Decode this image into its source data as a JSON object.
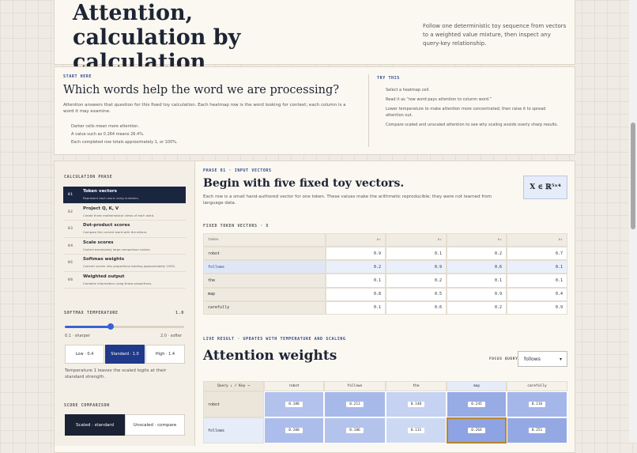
{
  "header": {
    "title": "Attention, calculation by calculation",
    "subtitle": "Follow one deterministic toy sequence from vectors to a weighted value mixture, then inspect any query-key relationship."
  },
  "intro": {
    "eyebrow": "START HERE",
    "heading": "Which words help the word we are processing?",
    "paragraph": "Attention answers that question for this fixed toy calculation. Each heatmap row is the word looking for context; each column is a word it may examine.",
    "notes": [
      "Darker cells mean more attention.",
      "A value such as 0.264 means 26.4%.",
      "Each completed row totals approximately 1, or 100%."
    ],
    "try_eyebrow": "TRY THIS",
    "try_items": [
      "Select a heatmap cell.",
      "Read it as “row word pays attention to column word.”",
      "Lower temperature to make attention more concentrated; then raise it to spread attention out.",
      "Compare scaled and unscaled attention to see why scaling avoids overly sharp results."
    ]
  },
  "sidebar": {
    "phase_label": "CALCULATION PHASE",
    "phases": [
      {
        "num": "01",
        "title": "Token vectors",
        "desc": "Represent each word using numbers."
      },
      {
        "num": "02",
        "title": "Project Q, K, V",
        "desc": "Create three mathematical views of each word."
      },
      {
        "num": "03",
        "title": "Dot-product scores",
        "desc": "Compare the current word with the others."
      },
      {
        "num": "04",
        "title": "Scale scores",
        "desc": "Control excessively large comparison values."
      },
      {
        "num": "05",
        "title": "Softmax weights",
        "desc": "Convert scores into proportions totaling approximately 100%."
      },
      {
        "num": "06",
        "title": "Weighted output",
        "desc": "Combine information using those proportions."
      }
    ],
    "temp_label": "SOFTMAX TEMPERATURE",
    "temp_value": "1.0",
    "temp_min": "0.1 · sharper",
    "temp_max": "2.0 · softer",
    "presets": [
      "Low · 0.4",
      "Standard · 1.0",
      "High · 1.4"
    ],
    "temp_note": "Temperature 1 leaves the scaled logits at their standard strength.",
    "score_label": "SCORE COMPARISON",
    "score_buttons": [
      "Scaled · standard",
      "Unscaled · compare"
    ]
  },
  "phase": {
    "eyebrow": "PHASE 01 · INPUT VECTORS",
    "heading": "Begin with five fixed toy vectors.",
    "paragraph": "Each row is a small hand-authored vector for one token. These values make the arithmetic reproducible; they were not learned from language data.",
    "badge": "X ∈ ℝ⁵ˣ⁴"
  },
  "table": {
    "label": "FIXED TOKEN VECTORS · X",
    "headers": [
      "token",
      "x₁",
      "x₂",
      "x₃",
      "x₄"
    ],
    "rows": [
      [
        "robot",
        "0.9",
        "0.1",
        "0.2",
        "0.7"
      ],
      [
        "follows",
        "0.2",
        "0.9",
        "0.6",
        "0.1"
      ],
      [
        "the",
        "0.1",
        "0.2",
        "0.1",
        "0.1"
      ],
      [
        "map",
        "0.8",
        "0.5",
        "0.9",
        "0.4"
      ],
      [
        "carefully",
        "0.1",
        "0.6",
        "0.2",
        "0.9"
      ]
    ]
  },
  "heatmap": {
    "eyebrow": "LIVE RESULT · UPDATES WITH TEMPERATURE AND SCALING",
    "heading": "Attention weights",
    "focus_label": "FOCUS QUERY",
    "focus_value": "follows",
    "corner": "Query ↓ / Key →",
    "keys": [
      "robot",
      "follows",
      "the",
      "map",
      "carefully"
    ],
    "rows": [
      {
        "query": "robot",
        "values": [
          0.188,
          0.211,
          0.148,
          0.245,
          0.216
        ]
      },
      {
        "query": "follows",
        "values": [
          0.2,
          0.186,
          0.131,
          0.264,
          0.251
        ]
      }
    ]
  }
}
